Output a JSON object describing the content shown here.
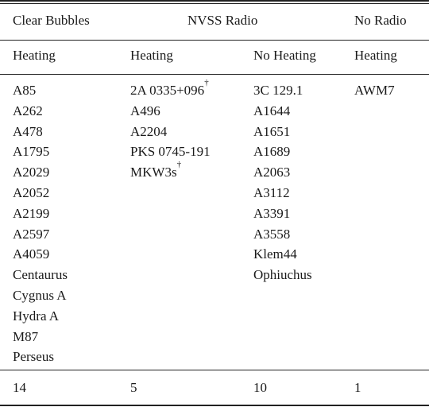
{
  "table": {
    "group_headers": [
      "Clear Bubbles",
      "NVSS Radio",
      "No Radio"
    ],
    "sub_headers": [
      "Heating",
      "Heating",
      "No Heating",
      "Heating"
    ],
    "columns": [
      [
        "A85",
        "A262",
        "A478",
        "A1795",
        "A2029",
        "A2052",
        "A2199",
        "A2597",
        "A4059",
        "Centaurus",
        "Cygnus A",
        "Hydra A",
        "M87",
        "Perseus"
      ],
      [
        "2A 0335+096",
        "A496",
        "A2204",
        "PKS 0745-191",
        "MKW3s"
      ],
      [
        "3C 129.1",
        "A1644",
        "A1651",
        "A1689",
        "A2063",
        "A3112",
        "A3391",
        "A3558",
        "Klem44",
        "Ophiuchus"
      ],
      [
        "AWM7"
      ]
    ],
    "dagger": "†",
    "totals": [
      "14",
      "5",
      "10",
      "1"
    ]
  }
}
